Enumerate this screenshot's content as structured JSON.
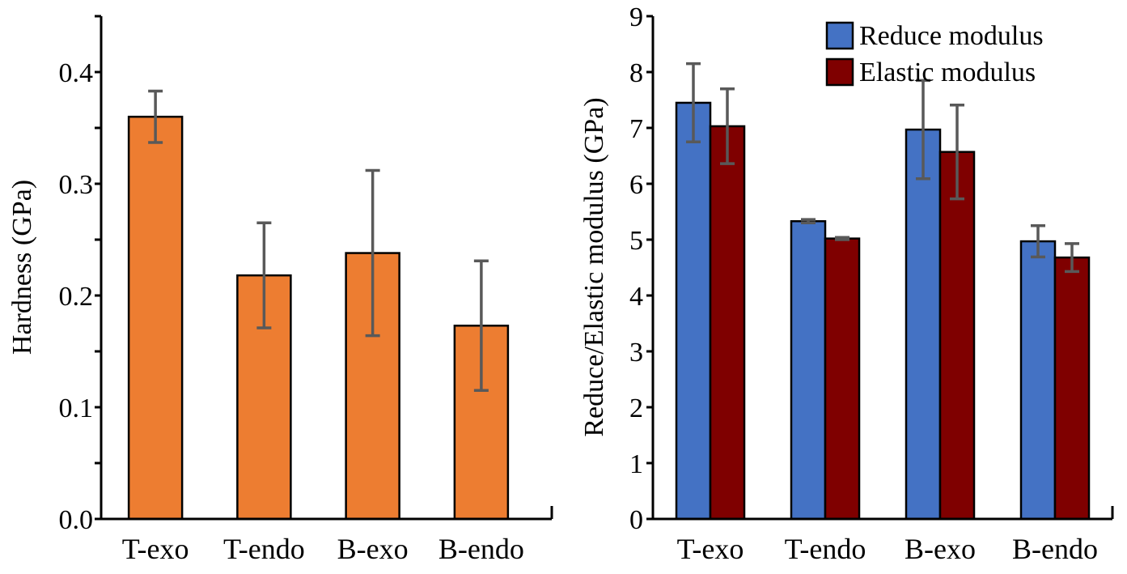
{
  "chart_data": [
    {
      "type": "bar",
      "categories": [
        "T-exo",
        "T-endo",
        "B-exo",
        "B-endo"
      ],
      "series": [
        {
          "values": [
            0.36,
            0.218,
            0.238,
            0.173
          ],
          "errors": [
            0.023,
            0.047,
            0.074,
            0.058
          ],
          "color": "#ED7D31"
        }
      ],
      "xlabel": "",
      "ylabel": "Hardness (GPa)",
      "ylim": [
        0,
        0.45
      ],
      "yticks": [
        0.0,
        0.1,
        0.2,
        0.3,
        0.4
      ],
      "ytick_labels": [
        "0.0",
        "0.1",
        "0.2",
        "0.3",
        "0.4"
      ],
      "grid": false,
      "legend": null
    },
    {
      "type": "bar",
      "categories": [
        "T-exo",
        "T-endo",
        "B-exo",
        "B-endo"
      ],
      "series": [
        {
          "name": "Reduce modulus",
          "values": [
            7.45,
            5.33,
            6.97,
            4.97
          ],
          "errors": [
            0.7,
            0.03,
            0.88,
            0.28
          ],
          "color": "#4472C4"
        },
        {
          "name": "Elastic modulus",
          "values": [
            7.03,
            5.02,
            6.57,
            4.68
          ],
          "errors": [
            0.67,
            0.02,
            0.84,
            0.25
          ],
          "color": "#7F0000"
        }
      ],
      "xlabel": "",
      "ylabel": "Reduce/Elastic modulus (GPa)",
      "ylim": [
        0,
        9
      ],
      "yticks": [
        0,
        1,
        2,
        3,
        4,
        5,
        6,
        7,
        8,
        9
      ],
      "ytick_labels": [
        "0",
        "1",
        "2",
        "3",
        "4",
        "5",
        "6",
        "7",
        "8",
        "9"
      ],
      "grid": false,
      "legend": "top-right"
    }
  ]
}
